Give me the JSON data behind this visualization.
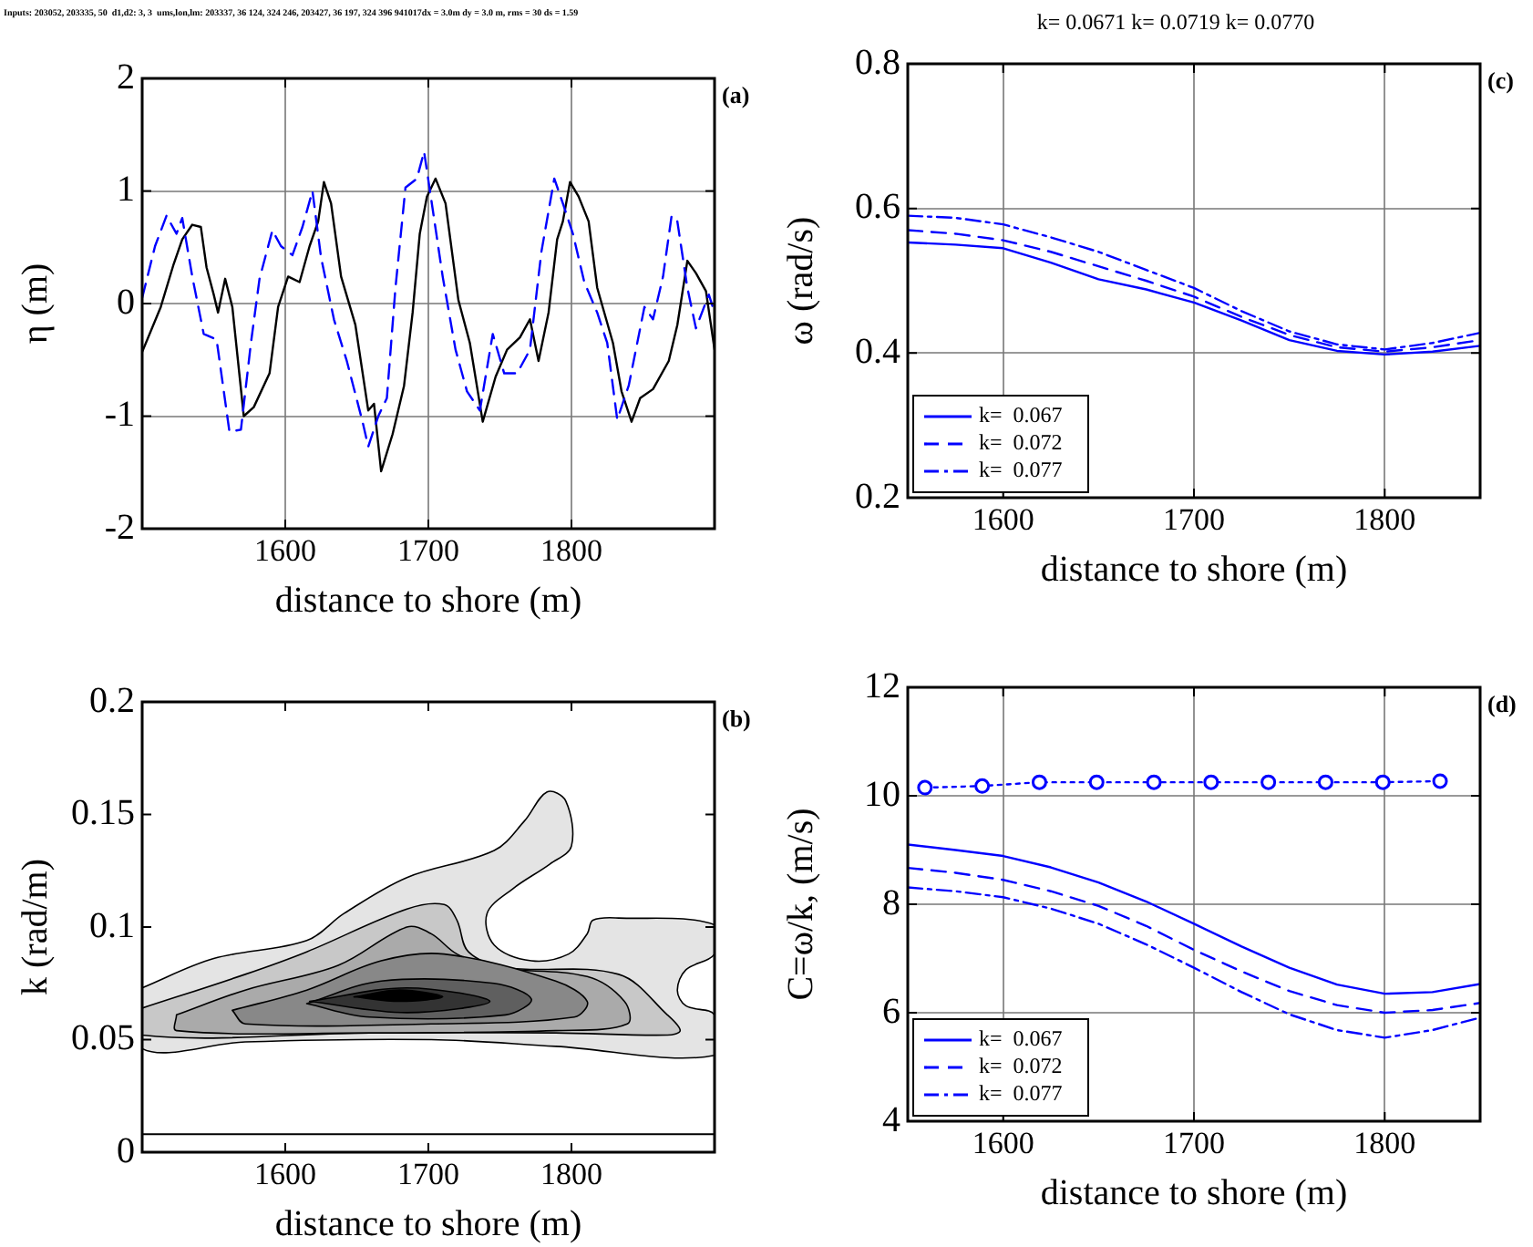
{
  "chart_data": [
    {
      "type": "line",
      "title": "Inputs: 203052, 203335, 50  d1,d2: 3, 3  ums,lon,lm: 203337, 36 124, 324 246, 203427, 36 197, 324 396 941017dx = 3.0m dy = 3.0 m, rms = 30 ds = 1.59",
      "xlabel": "distance to shore (m)",
      "ylabel": "η (m)",
      "annotations": [
        "(a)"
      ],
      "xlim": [
        1500,
        1900
      ],
      "xticks": [
        1600,
        1700,
        1800
      ],
      "ylim": [
        -2,
        2
      ],
      "yticks": [
        -2,
        -1,
        0,
        1,
        2
      ],
      "grid": true,
      "series": [
        {
          "color": "#000000",
          "line_style": "solid",
          "x": [
            1500,
            1513,
            1522,
            1528,
            1535,
            1541,
            1545,
            1550,
            1553,
            1558,
            1563,
            1571,
            1578,
            1589,
            1595,
            1602,
            1610,
            1617,
            1623,
            1627,
            1632,
            1639,
            1649,
            1658,
            1662,
            1667,
            1675,
            1683,
            1689,
            1694,
            1699,
            1705,
            1712,
            1721,
            1729,
            1738,
            1747,
            1755,
            1764,
            1771,
            1777,
            1784,
            1790,
            1794,
            1799,
            1805,
            1812,
            1818,
            1829,
            1835,
            1842,
            1848,
            1857,
            1868,
            1874,
            1881,
            1887,
            1894,
            1900
          ],
          "values": [
            -0.43,
            -0.03,
            0.35,
            0.57,
            0.7,
            0.68,
            0.32,
            0.08,
            -0.08,
            0.22,
            -0.03,
            -1.0,
            -0.92,
            -0.62,
            -0.03,
            0.24,
            0.19,
            0.51,
            0.73,
            1.08,
            0.89,
            0.24,
            -0.19,
            -0.95,
            -0.89,
            -1.49,
            -1.16,
            -0.73,
            -0.08,
            0.62,
            0.95,
            1.11,
            0.89,
            0.03,
            -0.35,
            -1.05,
            -0.65,
            -0.41,
            -0.3,
            -0.14,
            -0.51,
            -0.08,
            0.57,
            0.73,
            1.08,
            0.95,
            0.73,
            0.14,
            -0.35,
            -0.78,
            -1.05,
            -0.84,
            -0.76,
            -0.51,
            -0.19,
            0.38,
            0.27,
            0.11,
            -0.41
          ]
        },
        {
          "color": "#0000ff",
          "line_style": "dashed",
          "x": [
            1500,
            1509,
            1517,
            1524,
            1528,
            1535,
            1543,
            1552,
            1561,
            1569,
            1576,
            1582,
            1591,
            1597,
            1605,
            1612,
            1619,
            1625,
            1634,
            1643,
            1654,
            1658,
            1665,
            1671,
            1677,
            1684,
            1692,
            1697,
            1703,
            1710,
            1719,
            1727,
            1736,
            1745,
            1753,
            1762,
            1771,
            1779,
            1788,
            1794,
            1801,
            1809,
            1818,
            1825,
            1832,
            1840,
            1851,
            1857,
            1864,
            1870,
            1874,
            1881,
            1887,
            1896,
            1900
          ],
          "values": [
            0.05,
            0.51,
            0.78,
            0.62,
            0.76,
            0.24,
            -0.27,
            -0.32,
            -1.14,
            -1.12,
            -0.35,
            0.22,
            0.65,
            0.51,
            0.43,
            0.68,
            1.0,
            0.41,
            -0.14,
            -0.51,
            -1.05,
            -1.27,
            -1.0,
            -0.84,
            0.14,
            1.03,
            1.11,
            1.35,
            0.84,
            0.24,
            -0.41,
            -0.78,
            -0.95,
            -0.27,
            -0.62,
            -0.62,
            -0.41,
            0.46,
            1.11,
            0.89,
            0.62,
            0.19,
            -0.08,
            -0.35,
            -1.03,
            -0.73,
            -0.03,
            -0.14,
            0.24,
            0.78,
            0.73,
            0.14,
            -0.22,
            0.08,
            -0.08
          ]
        }
      ]
    },
    {
      "type": "area",
      "xlabel": "distance to shore (m)",
      "ylabel": "k (rad/m)",
      "annotations": [
        "(b)"
      ],
      "xlim": [
        1500,
        1900
      ],
      "xticks": [
        1600,
        1700,
        1800
      ],
      "ylim": [
        0,
        0.2
      ],
      "yticks": [
        0,
        0.05,
        0.1,
        0.15,
        0.2
      ],
      "grid": false,
      "ref_lines": [
        {
          "axis": "y",
          "value": 0.008,
          "color": "#000000"
        }
      ],
      "series": [
        {
          "color": "#e4e4e4",
          "x": [
            1500,
            1550,
            1615,
            1641,
            1685,
            1746,
            1767,
            1783,
            1796,
            1800,
            1785,
            1759,
            1741,
            1746,
            1772,
            1798,
            1811,
            1815,
            1833,
            1900,
            1900,
            1880,
            1874,
            1880,
            1900,
            1900,
            1789,
            1702,
            1572,
            1500,
            1500
          ],
          "values": [
            0.073,
            0.086,
            0.094,
            0.106,
            0.122,
            0.134,
            0.147,
            0.16,
            0.156,
            0.136,
            0.128,
            0.117,
            0.106,
            0.092,
            0.085,
            0.088,
            0.097,
            0.103,
            0.104,
            0.101,
            0.088,
            0.081,
            0.072,
            0.065,
            0.061,
            0.043,
            0.047,
            0.05,
            0.049,
            0.046,
            0.073
          ]
        },
        {
          "color": "#c8c8c8",
          "x": [
            1500,
            1572,
            1615,
            1685,
            1711,
            1720,
            1728,
            1754,
            1833,
            1867,
            1876,
            1867,
            1789,
            1659,
            1500,
            1500
          ],
          "values": [
            0.064,
            0.079,
            0.089,
            0.108,
            0.11,
            0.103,
            0.089,
            0.082,
            0.079,
            0.061,
            0.054,
            0.052,
            0.053,
            0.053,
            0.052,
            0.064
          ]
        },
        {
          "color": "#aaaaaa",
          "x": [
            1524,
            1572,
            1637,
            1685,
            1702,
            1720,
            1746,
            1811,
            1837,
            1839,
            1789,
            1659,
            1524,
            1524
          ],
          "values": [
            0.061,
            0.072,
            0.083,
            0.1,
            0.097,
            0.088,
            0.082,
            0.078,
            0.067,
            0.057,
            0.054,
            0.053,
            0.054,
            0.061
          ]
        },
        {
          "color": "#888888",
          "x": [
            1563,
            1615,
            1667,
            1711,
            1789,
            1811,
            1802,
            1702,
            1572,
            1563
          ],
          "values": [
            0.063,
            0.072,
            0.085,
            0.088,
            0.076,
            0.067,
            0.06,
            0.057,
            0.057,
            0.063
          ]
        },
        {
          "color": "#5f5f5f",
          "x": [
            1615,
            1667,
            1746,
            1772,
            1754,
            1659,
            1615
          ],
          "values": [
            0.066,
            0.076,
            0.075,
            0.068,
            0.061,
            0.06,
            0.066
          ]
        },
        {
          "color": "#333333",
          "x": [
            1617,
            1685,
            1743,
            1685,
            1617
          ],
          "values": [
            0.067,
            0.073,
            0.067,
            0.062,
            0.067
          ]
        },
        {
          "color": "#000000",
          "x": [
            1648,
            1680,
            1710,
            1680,
            1648
          ],
          "values": [
            0.069,
            0.072,
            0.069,
            0.067,
            0.069
          ]
        }
      ]
    },
    {
      "type": "line",
      "title": "k= 0.0671 k= 0.0719 k= 0.0770",
      "xlabel": "distance to shore (m)",
      "ylabel": "ω (rad/s)",
      "annotations": [
        "(c)"
      ],
      "xlim": [
        1550,
        1850
      ],
      "xticks": [
        1600,
        1700,
        1800
      ],
      "ylim": [
        0.2,
        0.8
      ],
      "yticks": [
        0.2,
        0.4,
        0.6,
        0.8
      ],
      "grid": true,
      "legend": "bottom left",
      "x": [
        1550,
        1575,
        1600,
        1625,
        1650,
        1675,
        1700,
        1725,
        1750,
        1775,
        1800,
        1825,
        1850
      ],
      "series": [
        {
          "name": "k=  0.067",
          "color": "#0000ff",
          "line_style": "solid",
          "values": [
            0.553,
            0.55,
            0.545,
            0.525,
            0.502,
            0.488,
            0.47,
            0.445,
            0.418,
            0.403,
            0.398,
            0.402,
            0.41
          ]
        },
        {
          "name": "k=  0.072",
          "color": "#0000ff",
          "line_style": "dashed",
          "values": [
            0.57,
            0.565,
            0.556,
            0.54,
            0.52,
            0.5,
            0.478,
            0.45,
            0.425,
            0.408,
            0.402,
            0.408,
            0.418
          ]
        },
        {
          "name": "k=  0.077",
          "color": "#0000ff",
          "line_style": "dashdot",
          "values": [
            0.59,
            0.587,
            0.578,
            0.56,
            0.54,
            0.515,
            0.49,
            0.458,
            0.43,
            0.412,
            0.405,
            0.414,
            0.428
          ]
        }
      ]
    },
    {
      "type": "line",
      "xlabel": "distance to shore (m)",
      "ylabel": "C=ω/k, (m/s)",
      "annotations": [
        "(d)"
      ],
      "xlim": [
        1550,
        1850
      ],
      "xticks": [
        1600,
        1700,
        1800
      ],
      "ylim": [
        4,
        12
      ],
      "yticks": [
        4,
        6,
        8,
        10,
        12
      ],
      "grid": true,
      "legend": "bottom left",
      "x": [
        1550,
        1575,
        1600,
        1625,
        1650,
        1675,
        1700,
        1725,
        1750,
        1775,
        1800,
        1825,
        1850
      ],
      "series": [
        {
          "name": "k=  0.067",
          "color": "#0000ff",
          "line_style": "solid",
          "values": [
            9.1,
            9.0,
            8.89,
            8.68,
            8.4,
            8.05,
            7.64,
            7.22,
            6.83,
            6.52,
            6.35,
            6.38,
            6.53
          ]
        },
        {
          "name": "k=  0.072",
          "color": "#0000ff",
          "line_style": "dashed",
          "values": [
            8.67,
            8.58,
            8.45,
            8.24,
            7.97,
            7.6,
            7.16,
            6.76,
            6.4,
            6.14,
            6.0,
            6.05,
            6.18
          ]
        },
        {
          "name": "k=  0.077",
          "color": "#0000ff",
          "line_style": "dashdot",
          "values": [
            8.31,
            8.24,
            8.13,
            7.92,
            7.64,
            7.26,
            6.83,
            6.38,
            5.97,
            5.68,
            5.54,
            5.68,
            5.91
          ]
        },
        {
          "color": "#0000ff",
          "line_style": "dotted",
          "marker": "circle",
          "x": [
            1559,
            1589,
            1619,
            1649,
            1679,
            1709,
            1739,
            1769,
            1799,
            1829
          ],
          "values": [
            10.15,
            10.18,
            10.25,
            10.25,
            10.25,
            10.25,
            10.25,
            10.25,
            10.25,
            10.27
          ]
        }
      ]
    }
  ]
}
